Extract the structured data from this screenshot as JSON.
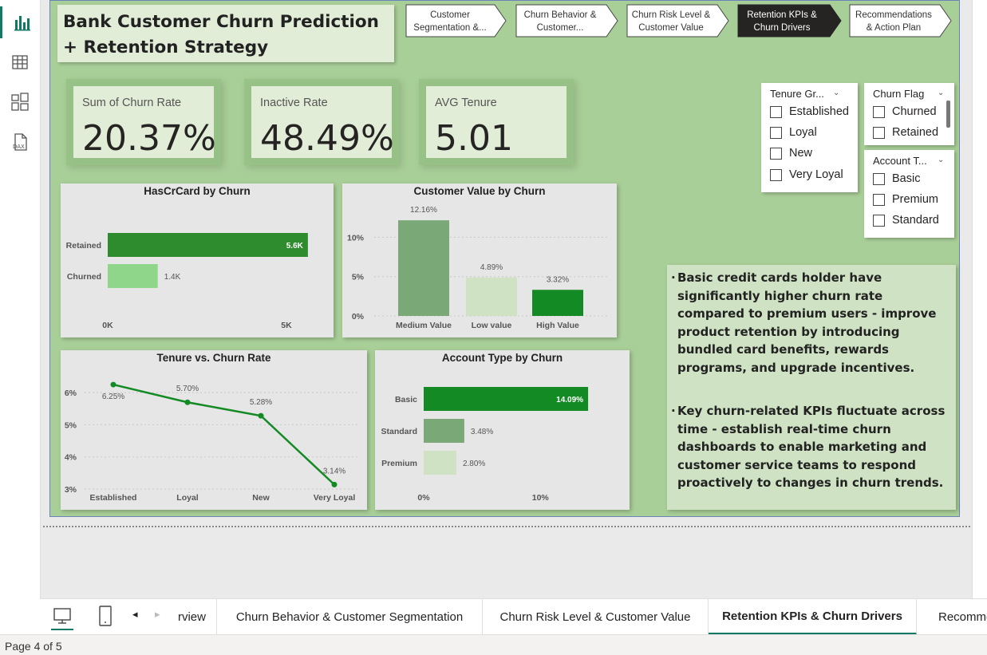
{
  "report": {
    "title": "Bank Customer Churn Prediction + Retention Strategy",
    "nav_buttons": [
      {
        "label": "Customer Segmentation &...",
        "active": false
      },
      {
        "label": "Churn Behavior & Customer...",
        "active": false
      },
      {
        "label": "Churn Risk Level & Customer Value",
        "active": false
      },
      {
        "label": "Retention KPIs & Churn Drivers",
        "active": true
      },
      {
        "label": "Recommendations & Action Plan",
        "active": false
      }
    ],
    "kpis": [
      {
        "label": "Sum of Churn Rate",
        "value": "20.37%"
      },
      {
        "label": "Inactive Rate",
        "value": "48.49%"
      },
      {
        "label": "AVG Tenure",
        "value": "5.01"
      }
    ],
    "slicers": {
      "tenure": {
        "header": "Tenure Gr...",
        "items": [
          "Established",
          "Loyal",
          "New",
          "Very Loyal"
        ]
      },
      "churn_flag": {
        "header": "Churn Flag",
        "items": [
          "Churned",
          "Retained"
        ]
      },
      "account_type": {
        "header": "Account T...",
        "items": [
          "Basic",
          "Premium",
          "Standard"
        ]
      }
    },
    "insights": [
      "Basic credit cards holder have significantly higher churn rate compared to premium users - improve product retention by introducing bundled card benefits, rewards programs, and upgrade incentives.",
      "Key churn-related KPIs fluctuate across time - establish real-time churn dashboards to enable marketing and customer service teams to respond proactively to changes in churn trends."
    ]
  },
  "colors": {
    "report_bg": "#a9cf98",
    "dark_green": "#2e8b2e",
    "light_green": "#8fd68a",
    "mid_green": "#7aa876",
    "pale_green": "#cfe3c4",
    "bright_green": "#138a23",
    "active_nav": "#252423",
    "tab_accent": "#117865"
  },
  "tabs": [
    {
      "label": "rview",
      "selected": false
    },
    {
      "label": "Churn Behavior & Customer Segmentation",
      "selected": false
    },
    {
      "label": "Churn Risk Level & Customer Value",
      "selected": false
    },
    {
      "label": "Retention KPIs & Churn Drivers",
      "selected": true
    },
    {
      "label": "Recomme",
      "selected": false
    }
  ],
  "status": {
    "page": "Page 4 of 5"
  },
  "chart_data": [
    {
      "type": "bar",
      "orientation": "horizontal",
      "title": "HasCrCard by Churn",
      "categories": [
        "Retained",
        "Churned"
      ],
      "values": [
        5600,
        1400
      ],
      "data_labels": [
        "5.6K",
        "1.4K"
      ],
      "xlim": [
        0,
        5000
      ],
      "xticks": [
        "0K",
        "5K"
      ],
      "colors": [
        "#2e8b2e",
        "#8fd68a"
      ]
    },
    {
      "type": "bar",
      "title": "Customer Value by Churn",
      "categories": [
        "Medium Value",
        "Low value",
        "High Value"
      ],
      "values": [
        12.16,
        4.89,
        3.32
      ],
      "data_labels": [
        "12.16%",
        "4.89%",
        "3.32%"
      ],
      "ylim": [
        0,
        14
      ],
      "yticks": [
        "0%",
        "5%",
        "10%"
      ],
      "colors": [
        "#7aa876",
        "#cfe3c4",
        "#138a23"
      ]
    },
    {
      "type": "line",
      "title": "Tenure vs. Churn Rate",
      "categories": [
        "Established",
        "Loyal",
        "New",
        "Very Loyal"
      ],
      "values": [
        6.25,
        5.7,
        5.28,
        3.14
      ],
      "data_labels": [
        "6.25%",
        "5.70%",
        "5.28%",
        "3.14%"
      ],
      "ylim": [
        3,
        6.5
      ],
      "yticks": [
        "3%",
        "4%",
        "5%",
        "6%"
      ],
      "color": "#138a23"
    },
    {
      "type": "bar",
      "orientation": "horizontal",
      "title": "Account Type by Churn",
      "categories": [
        "Basic",
        "Standard",
        "Premium"
      ],
      "values": [
        14.09,
        3.48,
        2.8
      ],
      "data_labels": [
        "14.09%",
        "3.48%",
        "2.80%"
      ],
      "xlim": [
        0,
        14.7
      ],
      "xticks": [
        "0%",
        "10%"
      ],
      "colors": [
        "#138a23",
        "#7aa876",
        "#cfe3c4"
      ]
    }
  ]
}
